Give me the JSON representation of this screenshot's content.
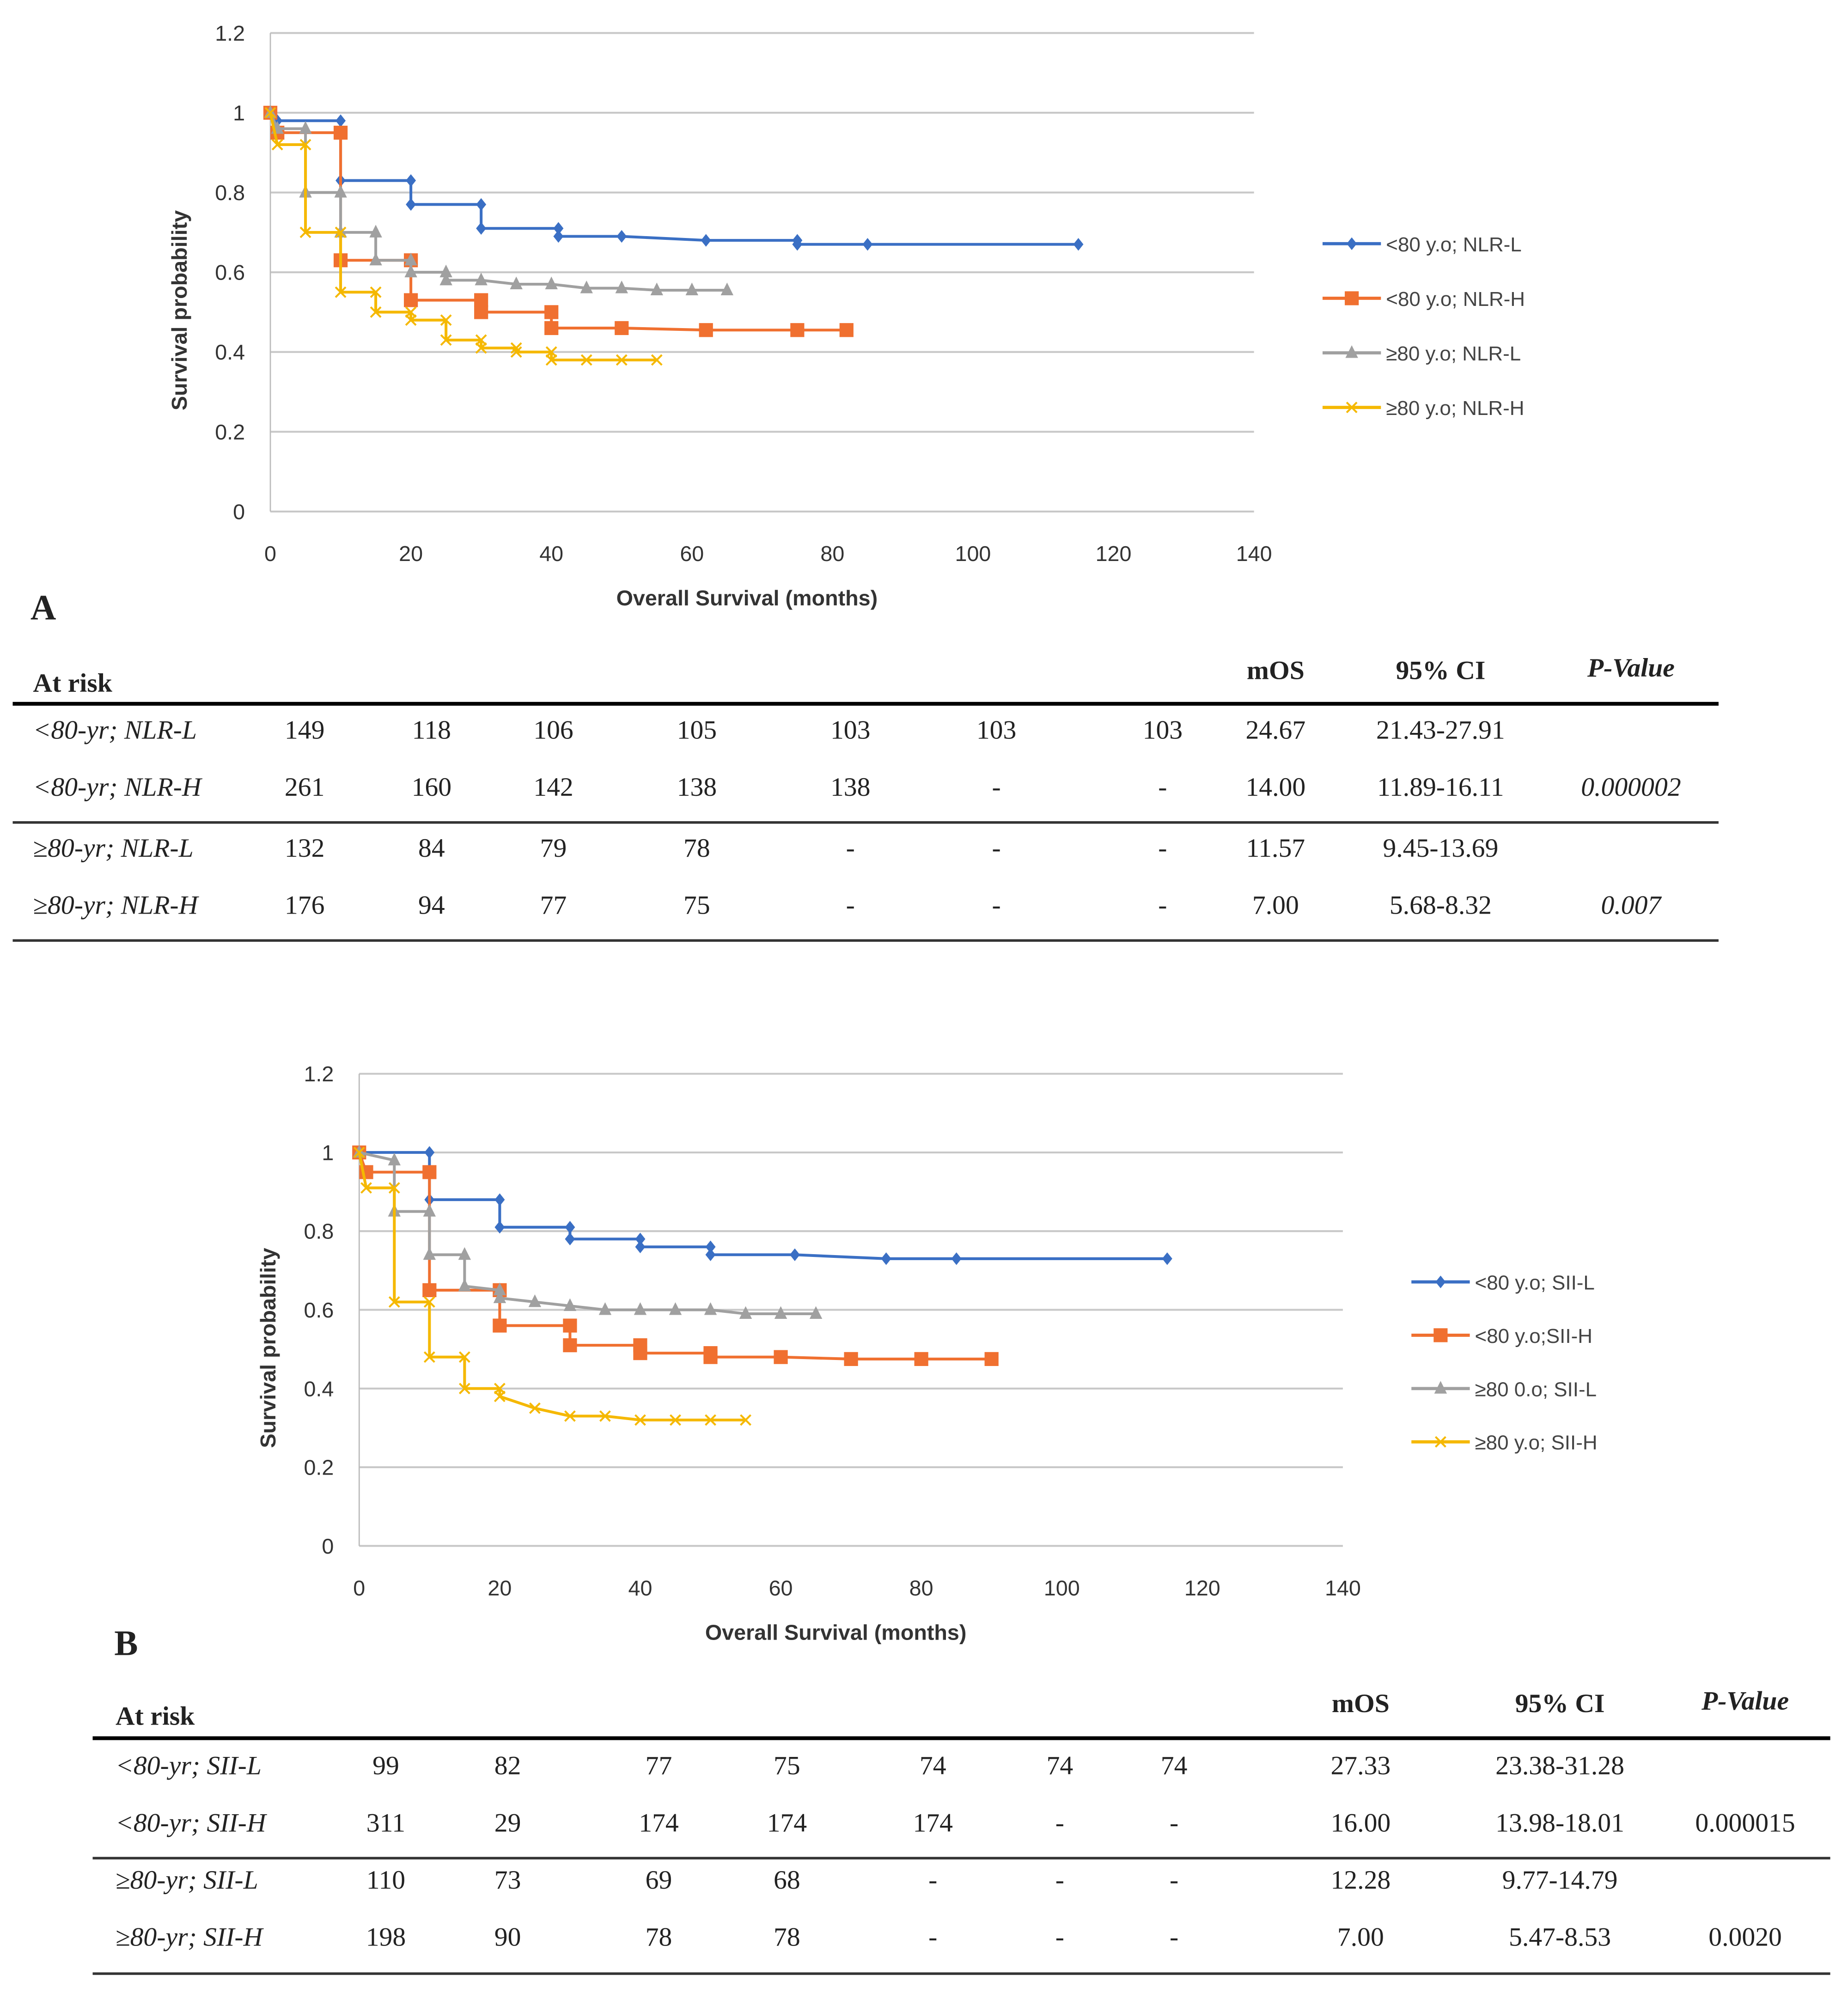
{
  "chart_data": [
    {
      "type": "line",
      "panel": "A",
      "xlabel": "Overall Survival (months)",
      "ylabel": "Survival probability",
      "xlim": [
        0,
        140
      ],
      "ylim": [
        0,
        1.2
      ],
      "xticks": [
        "0",
        "20",
        "40",
        "60",
        "80",
        "100",
        "120",
        "140"
      ],
      "yticks": [
        "0",
        "0.2",
        "0.4",
        "0.6",
        "0.8",
        "1",
        "1.2"
      ],
      "legend_position": "right",
      "series": [
        {
          "name": "<80 y.o; NLR-L",
          "color": "#3a6fc4",
          "marker": "diamond",
          "points": [
            [
              0,
              1
            ],
            [
              1,
              0.98
            ],
            [
              10,
              0.98
            ],
            [
              10,
              0.83
            ],
            [
              20,
              0.83
            ],
            [
              20,
              0.77
            ],
            [
              30,
              0.77
            ],
            [
              30,
              0.71
            ],
            [
              41,
              0.71
            ],
            [
              41,
              0.69
            ],
            [
              50,
              0.69
            ],
            [
              62,
              0.68
            ],
            [
              75,
              0.68
            ],
            [
              75,
              0.67
            ],
            [
              85,
              0.67
            ],
            [
              115,
              0.67
            ]
          ]
        },
        {
          "name": "<80 y.o; NLR-H",
          "color": "#f07030",
          "marker": "square",
          "points": [
            [
              0,
              1
            ],
            [
              1,
              0.95
            ],
            [
              10,
              0.95
            ],
            [
              10,
              0.63
            ],
            [
              20,
              0.63
            ],
            [
              20,
              0.53
            ],
            [
              30,
              0.53
            ],
            [
              30,
              0.5
            ],
            [
              40,
              0.5
            ],
            [
              40,
              0.46
            ],
            [
              50,
              0.46
            ],
            [
              62,
              0.455
            ],
            [
              75,
              0.455
            ],
            [
              82,
              0.455
            ]
          ]
        },
        {
          "name": "≥80 y.o; NLR-L",
          "color": "#a0a0a0",
          "marker": "triangle",
          "points": [
            [
              0,
              1
            ],
            [
              1,
              0.96
            ],
            [
              5,
              0.96
            ],
            [
              5,
              0.8
            ],
            [
              10,
              0.8
            ],
            [
              10,
              0.7
            ],
            [
              15,
              0.7
            ],
            [
              15,
              0.63
            ],
            [
              20,
              0.63
            ],
            [
              20,
              0.6
            ],
            [
              25,
              0.6
            ],
            [
              25,
              0.58
            ],
            [
              30,
              0.58
            ],
            [
              35,
              0.57
            ],
            [
              40,
              0.57
            ],
            [
              45,
              0.56
            ],
            [
              50,
              0.56
            ],
            [
              55,
              0.555
            ],
            [
              60,
              0.555
            ],
            [
              65,
              0.555
            ]
          ]
        },
        {
          "name": "≥80 y.o; NLR-H",
          "color": "#f5b800",
          "marker": "x",
          "points": [
            [
              0,
              1
            ],
            [
              1,
              0.92
            ],
            [
              5,
              0.92
            ],
            [
              5,
              0.7
            ],
            [
              10,
              0.7
            ],
            [
              10,
              0.55
            ],
            [
              15,
              0.55
            ],
            [
              15,
              0.5
            ],
            [
              20,
              0.5
            ],
            [
              20,
              0.48
            ],
            [
              25,
              0.48
            ],
            [
              25,
              0.43
            ],
            [
              30,
              0.43
            ],
            [
              30,
              0.41
            ],
            [
              35,
              0.41
            ],
            [
              35,
              0.4
            ],
            [
              40,
              0.4
            ],
            [
              40,
              0.38
            ],
            [
              45,
              0.38
            ],
            [
              50,
              0.38
            ],
            [
              55,
              0.38
            ]
          ]
        }
      ]
    },
    {
      "type": "line",
      "panel": "B",
      "xlabel": "Overall Survival (months)",
      "ylabel": "Survival probability",
      "xlim": [
        0,
        140
      ],
      "ylim": [
        0,
        1.2
      ],
      "xticks": [
        "0",
        "20",
        "40",
        "60",
        "80",
        "100",
        "120",
        "140"
      ],
      "yticks": [
        "0",
        "0.2",
        "0.4",
        "0.6",
        "0.8",
        "1",
        "1.2"
      ],
      "legend_position": "right",
      "series": [
        {
          "name": "<80 y.o; SII-L",
          "color": "#3a6fc4",
          "marker": "diamond",
          "points": [
            [
              0,
              1
            ],
            [
              10,
              1
            ],
            [
              10,
              0.88
            ],
            [
              20,
              0.88
            ],
            [
              20,
              0.81
            ],
            [
              30,
              0.81
            ],
            [
              30,
              0.78
            ],
            [
              40,
              0.78
            ],
            [
              40,
              0.76
            ],
            [
              50,
              0.76
            ],
            [
              50,
              0.74
            ],
            [
              62,
              0.74
            ],
            [
              75,
              0.73
            ],
            [
              85,
              0.73
            ],
            [
              115,
              0.73
            ]
          ]
        },
        {
          "name": "<80 y.o;SII-H",
          "color": "#f07030",
          "marker": "square",
          "points": [
            [
              0,
              1
            ],
            [
              1,
              0.95
            ],
            [
              10,
              0.95
            ],
            [
              10,
              0.65
            ],
            [
              20,
              0.65
            ],
            [
              20,
              0.56
            ],
            [
              30,
              0.56
            ],
            [
              30,
              0.51
            ],
            [
              40,
              0.51
            ],
            [
              40,
              0.49
            ],
            [
              50,
              0.49
            ],
            [
              50,
              0.48
            ],
            [
              60,
              0.48
            ],
            [
              70,
              0.475
            ],
            [
              80,
              0.475
            ],
            [
              90,
              0.475
            ]
          ]
        },
        {
          "name": "≥80 0.o; SII-L",
          "color": "#a0a0a0",
          "marker": "triangle",
          "points": [
            [
              0,
              1
            ],
            [
              5,
              0.98
            ],
            [
              5,
              0.85
            ],
            [
              10,
              0.85
            ],
            [
              10,
              0.74
            ],
            [
              15,
              0.74
            ],
            [
              15,
              0.66
            ],
            [
              20,
              0.65
            ],
            [
              20,
              0.63
            ],
            [
              25,
              0.62
            ],
            [
              30,
              0.61
            ],
            [
              35,
              0.6
            ],
            [
              40,
              0.6
            ],
            [
              45,
              0.6
            ],
            [
              50,
              0.6
            ],
            [
              55,
              0.59
            ],
            [
              60,
              0.59
            ],
            [
              65,
              0.59
            ]
          ]
        },
        {
          "name": "≥80 y.o; SII-H",
          "color": "#f5b800",
          "marker": "x",
          "points": [
            [
              0,
              1
            ],
            [
              1,
              0.91
            ],
            [
              5,
              0.91
            ],
            [
              5,
              0.62
            ],
            [
              10,
              0.62
            ],
            [
              10,
              0.48
            ],
            [
              15,
              0.48
            ],
            [
              15,
              0.4
            ],
            [
              20,
              0.4
            ],
            [
              20,
              0.38
            ],
            [
              25,
              0.35
            ],
            [
              30,
              0.33
            ],
            [
              35,
              0.33
            ],
            [
              40,
              0.32
            ],
            [
              45,
              0.32
            ],
            [
              50,
              0.32
            ],
            [
              55,
              0.32
            ]
          ]
        }
      ]
    }
  ],
  "panels": {
    "a": "A",
    "b": "B"
  },
  "tables": [
    {
      "header": {
        "at_risk": "At risk",
        "mos": "mOS",
        "ci": "95% CI",
        "p": "P-Value"
      },
      "rows": [
        {
          "label": "<80-yr; NLR-L",
          "risk": [
            "149",
            "118",
            "106",
            "105",
            "103",
            "103",
            "103"
          ],
          "mos": "24.67",
          "ci": "21.43-27.91",
          "p": ""
        },
        {
          "label": "<80-yr; NLR-H",
          "risk": [
            "261",
            "160",
            "142",
            "138",
            "138",
            "-",
            "-"
          ],
          "mos": "14.00",
          "ci": "11.89-16.11",
          "p": "0.000002"
        },
        {
          "label": "≥80-yr; NLR-L",
          "risk": [
            "132",
            "84",
            "79",
            "78",
            "-",
            "-",
            "-"
          ],
          "mos": "11.57",
          "ci": "9.45-13.69",
          "p": ""
        },
        {
          "label": "≥80-yr; NLR-H",
          "risk": [
            "176",
            "94",
            "77",
            "75",
            "-",
            "-",
            "-"
          ],
          "mos": "7.00",
          "ci": "5.68-8.32",
          "p": "0.007"
        }
      ]
    },
    {
      "header": {
        "at_risk": "At risk",
        "mos": "mOS",
        "ci": "95% CI",
        "p": "P-Value"
      },
      "rows": [
        {
          "label": "<80-yr; SII-L",
          "risk": [
            "99",
            "82",
            "77",
            "75",
            "74",
            "74",
            "74"
          ],
          "mos": "27.33",
          "ci": "23.38-31.28",
          "p": ""
        },
        {
          "label": "<80-yr; SII-H",
          "risk": [
            "311",
            "29",
            "174",
            "174",
            "174",
            "-",
            "-"
          ],
          "mos": "16.00",
          "ci": "13.98-18.01",
          "p": "0.000015"
        },
        {
          "label": "≥80-yr; SII-L",
          "risk": [
            "110",
            "73",
            "69",
            "68",
            "-",
            "-",
            "-"
          ],
          "mos": "12.28",
          "ci": "9.77-14.79",
          "p": ""
        },
        {
          "label": "≥80-yr; SII-H",
          "risk": [
            "198",
            "90",
            "78",
            "78",
            "-",
            "-",
            "-"
          ],
          "mos": "7.00",
          "ci": "5.47-8.53",
          "p": "0.0020"
        }
      ]
    }
  ]
}
